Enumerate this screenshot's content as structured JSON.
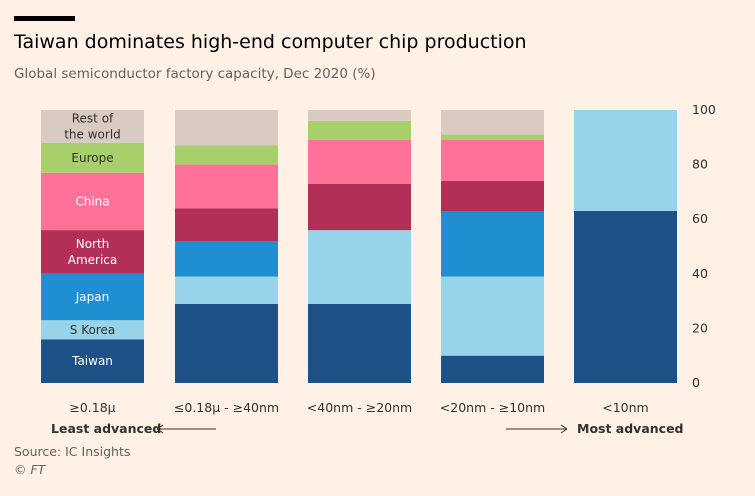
{
  "title": "Taiwan dominates high-end computer chip production",
  "subtitle": "Global semiconductor factory capacity, Dec 2020 (%)",
  "source": "Source: IC Insights",
  "credit": "© FT",
  "colors": {
    "background": "#fff1e5",
    "Taiwan": "#1f5189",
    "S Korea": "#97d4ea",
    "Japan": "#1f8fd1",
    "North America": "#b23058",
    "China": "#ff7199",
    "Europe": "#a8cf6b",
    "Rest of the world": "#d9cbc1"
  },
  "chart_data": {
    "type": "bar",
    "stacked": true,
    "categories": [
      "≥0.18μ",
      "≤0.18μ - ≥40nm",
      "<40nm - ≥20nm",
      "<20nm - ≥10nm",
      "<10nm"
    ],
    "series": [
      {
        "name": "Taiwan",
        "values": [
          16,
          29,
          29,
          10,
          63
        ]
      },
      {
        "name": "S Korea",
        "values": [
          7,
          10,
          27,
          29,
          37
        ]
      },
      {
        "name": "Japan",
        "values": [
          17,
          13,
          0,
          24,
          0
        ]
      },
      {
        "name": "North America",
        "values": [
          16,
          12,
          17,
          11,
          0
        ]
      },
      {
        "name": "China",
        "values": [
          21,
          16,
          16,
          15,
          0
        ]
      },
      {
        "name": "Europe",
        "values": [
          11,
          7,
          7,
          2,
          0
        ]
      },
      {
        "name": "Rest of the world",
        "values": [
          12,
          13,
          4,
          9,
          0
        ]
      }
    ],
    "segment_labels": [
      "Taiwan",
      "S Korea",
      "Japan",
      "North America",
      "China",
      "Europe",
      "Rest of the world"
    ],
    "ylim": [
      0,
      100
    ],
    "yticks": [
      0,
      20,
      40,
      60,
      80,
      100
    ],
    "y_axis_side": "right",
    "direction_labels": {
      "left": "Least advanced",
      "right": "Most advanced"
    }
  }
}
